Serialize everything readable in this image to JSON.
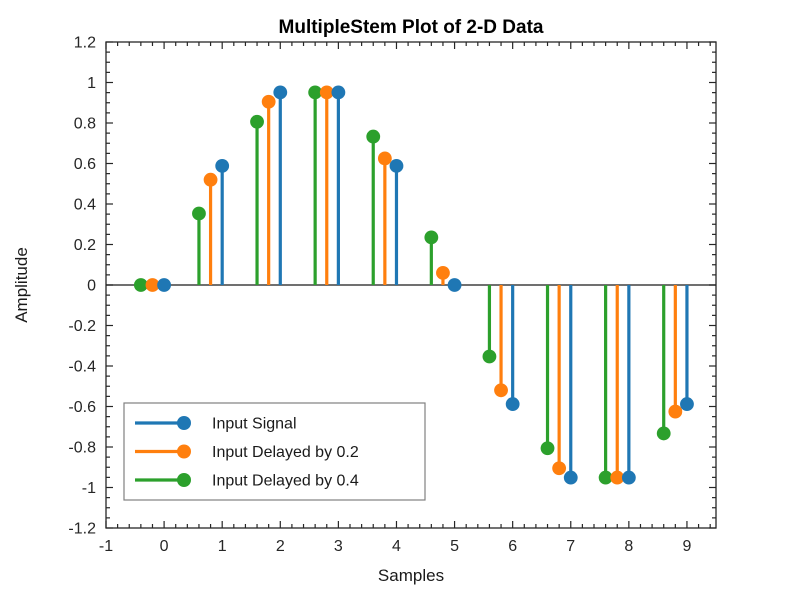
{
  "chart_data": {
    "type": "stem",
    "title": "MultipleStem Plot of 2-D Data",
    "xlabel": "Samples",
    "ylabel": "Amplitude",
    "xlim": [
      -1,
      9.5
    ],
    "ylim": [
      -1.2,
      1.2
    ],
    "x_tick_values": [
      -1,
      0,
      1,
      2,
      3,
      4,
      5,
      6,
      7,
      8,
      9
    ],
    "x_tick_labels": [
      "-1",
      "0",
      "1",
      "2",
      "3",
      "4",
      "5",
      "6",
      "7",
      "8",
      "9"
    ],
    "y_tick_values": [
      -1.2,
      -1,
      -0.8,
      -0.6,
      -0.4,
      -0.2,
      0,
      0.2,
      0.4,
      0.6,
      0.8,
      1,
      1.2
    ],
    "y_tick_labels": [
      "-1.2",
      "-1",
      "-0.8",
      "-0.6",
      "-0.4",
      "-0.2",
      "0",
      "0.2",
      "0.4",
      "0.6",
      "0.8",
      "1",
      "1.2"
    ],
    "x_minor_step": 0.2,
    "y_minor_step": 0.05,
    "grid": false,
    "baseline_y": 0,
    "legend_position": "lower left",
    "axis_color": "#262626",
    "baseline_color": "#404040",
    "legend_border_color": "#808080",
    "series": [
      {
        "name": "Input Signal",
        "color": "#1f77b4",
        "x": [
          0,
          1,
          2,
          3,
          4,
          5,
          6,
          7,
          8,
          9
        ],
        "y": [
          0,
          0.588,
          0.951,
          0.951,
          0.588,
          0,
          -0.588,
          -0.951,
          -0.951,
          -0.588
        ]
      },
      {
        "name": "Input Delayed by 0.2",
        "color": "#ff7f0e",
        "x": [
          -0.2,
          0.8,
          1.8,
          2.8,
          3.8,
          4.8,
          5.8,
          6.8,
          7.8,
          8.8
        ],
        "y": [
          0,
          0.52,
          0.905,
          0.951,
          0.625,
          0.06,
          -0.52,
          -0.905,
          -0.951,
          -0.625
        ]
      },
      {
        "name": "Input Delayed by 0.4",
        "color": "#2ca02c",
        "x": [
          -0.4,
          0.6,
          1.6,
          2.6,
          3.6,
          4.6,
          5.6,
          6.6,
          7.6,
          8.6
        ],
        "y": [
          0,
          0.353,
          0.806,
          0.951,
          0.733,
          0.235,
          -0.353,
          -0.806,
          -0.951,
          -0.733
        ]
      }
    ]
  }
}
